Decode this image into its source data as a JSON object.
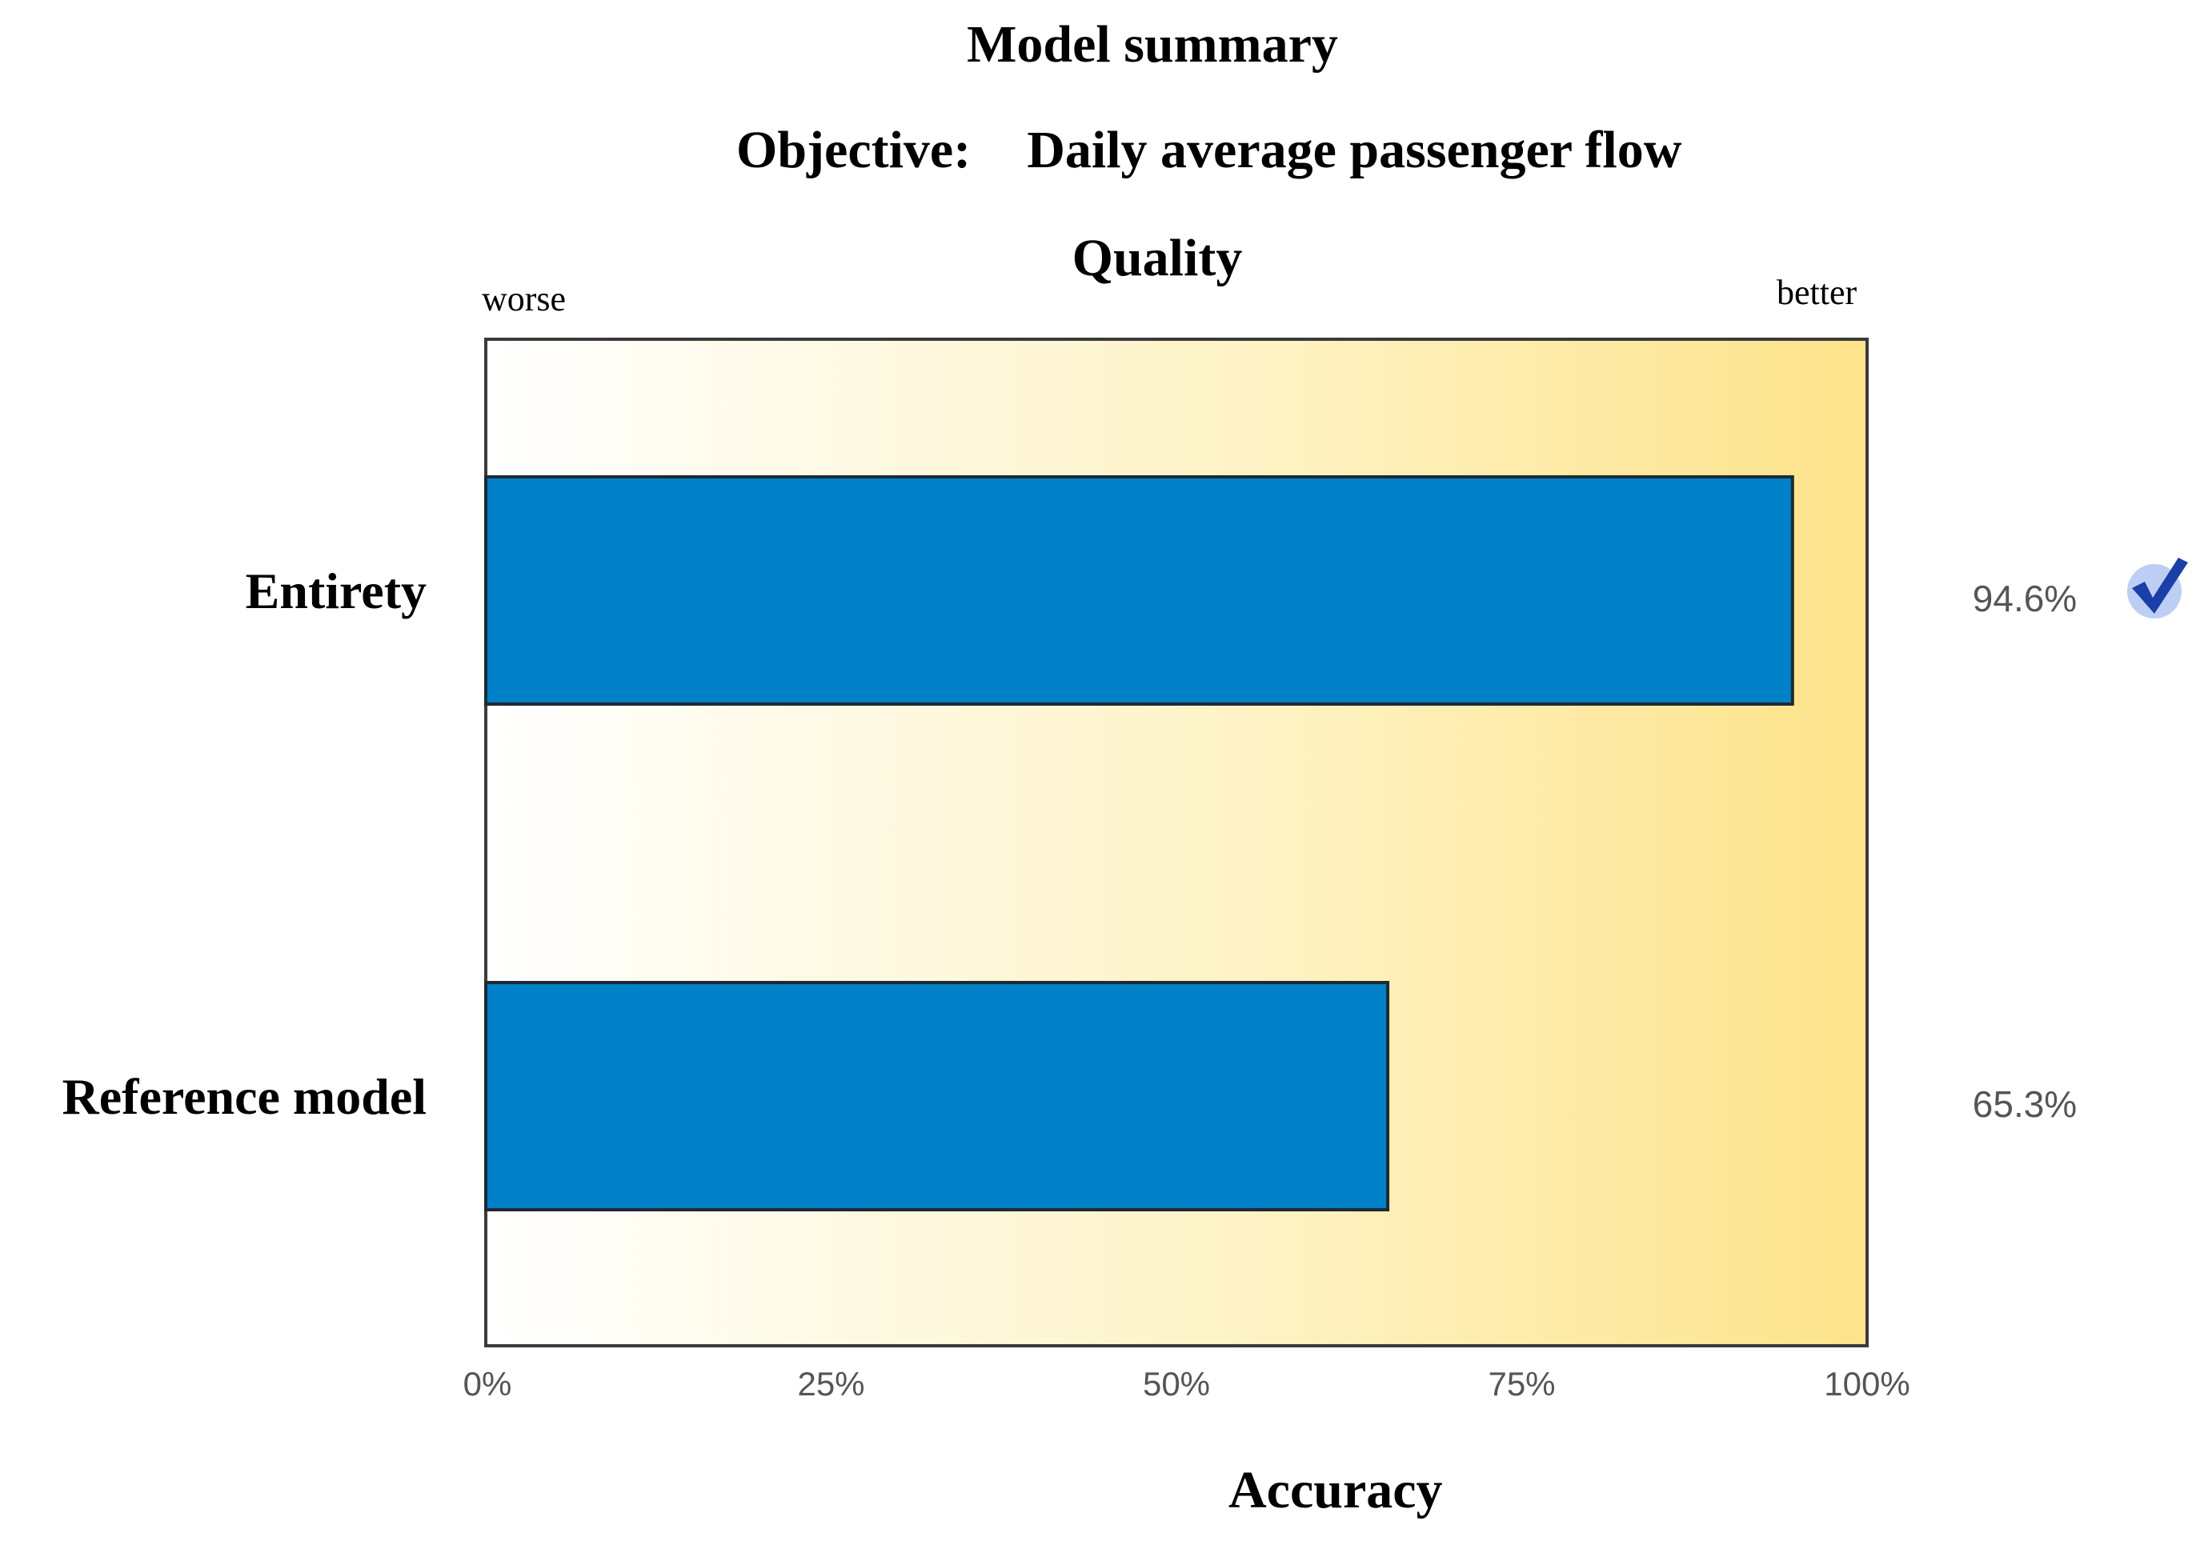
{
  "header": {
    "title": "Model summary",
    "objective_label": "Objective:",
    "objective_value": "Daily average passenger flow"
  },
  "quality": {
    "title": "Quality",
    "worse_label": "worse",
    "better_label": "better"
  },
  "chart_data": {
    "type": "bar",
    "orientation": "horizontal",
    "title": "Quality",
    "xlabel": "Accuracy",
    "ylabel": "",
    "xlim": [
      0,
      100
    ],
    "x_ticks": [
      "0%",
      "25%",
      "50%",
      "75%",
      "100%"
    ],
    "categories": [
      "Entirety",
      "Reference model"
    ],
    "values": [
      94.6,
      65.3
    ],
    "value_labels": [
      "94.6%",
      "65.3%"
    ],
    "bar_color": "#0080c6",
    "background_gradient": [
      "#ffffff",
      "#fde38a"
    ],
    "grid": false,
    "legend": "none",
    "best_marker": {
      "category": "Entirety",
      "icon": "check-mark-icon",
      "color": "#1a3fa8"
    }
  }
}
